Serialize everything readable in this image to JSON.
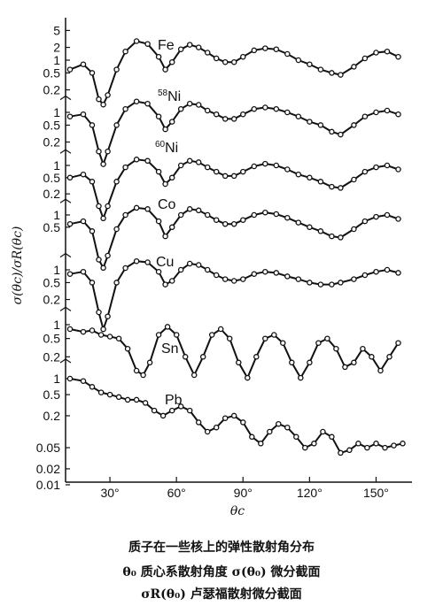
{
  "chart_data": {
    "type": "line",
    "xlabel": "θc",
    "ylabel": "σ(θc)/σR(θc)",
    "x_ticks": [
      "30°",
      "60°",
      "90°",
      "120°",
      "150°"
    ],
    "x_tick_values": [
      30,
      60,
      90,
      120,
      150
    ],
    "xlim": [
      10,
      165
    ],
    "series": [
      {
        "name": "Fe",
        "label_html": "Fe",
        "y_ticks": [
          "5",
          "2",
          "1",
          "0.5",
          "0.2"
        ],
        "x": [
          12,
          18,
          22,
          25,
          27,
          29,
          33,
          37,
          42,
          47,
          52,
          55,
          58,
          62,
          66,
          70,
          74,
          78,
          82,
          86,
          90,
          95,
          100,
          105,
          110,
          115,
          120,
          125,
          130,
          134,
          140,
          145,
          150,
          155,
          160
        ],
        "y": [
          0.6,
          0.8,
          0.5,
          0.12,
          0.09,
          0.15,
          0.6,
          1.6,
          2.8,
          2.4,
          1.2,
          0.6,
          0.9,
          1.8,
          2.3,
          2.0,
          1.5,
          1.1,
          0.9,
          0.9,
          1.2,
          1.7,
          1.9,
          1.8,
          1.4,
          1.0,
          0.8,
          0.6,
          0.5,
          0.45,
          0.7,
          1.1,
          1.5,
          1.6,
          1.2
        ]
      },
      {
        "name": "58Ni",
        "sup": "58",
        "base": "Ni",
        "y_ticks": [
          "1",
          "0.5",
          "0.2"
        ],
        "x": [
          12,
          18,
          22,
          25,
          27,
          29,
          33,
          37,
          42,
          47,
          52,
          55,
          58,
          62,
          66,
          70,
          74,
          78,
          82,
          86,
          90,
          95,
          100,
          105,
          110,
          115,
          120,
          125,
          130,
          134,
          140,
          145,
          150,
          155,
          160
        ],
        "y": [
          0.8,
          0.9,
          0.5,
          0.12,
          0.06,
          0.12,
          0.5,
          1.2,
          1.8,
          1.6,
          0.8,
          0.4,
          0.6,
          1.2,
          1.6,
          1.5,
          1.1,
          0.9,
          0.7,
          0.7,
          0.9,
          1.2,
          1.3,
          1.2,
          1.0,
          0.8,
          0.6,
          0.5,
          0.35,
          0.3,
          0.5,
          0.8,
          1.0,
          1.1,
          0.9
        ]
      },
      {
        "name": "60Ni",
        "sup": "60",
        "base": "Ni",
        "y_ticks": [
          "1",
          "0.5",
          "0.2"
        ],
        "x": [
          12,
          18,
          22,
          25,
          27,
          29,
          33,
          37,
          42,
          47,
          52,
          55,
          58,
          62,
          66,
          70,
          74,
          78,
          82,
          86,
          90,
          95,
          100,
          105,
          110,
          115,
          120,
          125,
          130,
          134,
          140,
          145,
          150,
          155,
          160
        ],
        "y": [
          0.5,
          0.6,
          0.4,
          0.1,
          0.05,
          0.1,
          0.4,
          0.9,
          1.4,
          1.3,
          0.7,
          0.35,
          0.5,
          1.0,
          1.3,
          1.2,
          0.9,
          0.7,
          0.55,
          0.55,
          0.7,
          0.95,
          1.1,
          1.0,
          0.8,
          0.6,
          0.5,
          0.4,
          0.3,
          0.28,
          0.45,
          0.7,
          0.9,
          1.0,
          0.8
        ]
      },
      {
        "name": "Co",
        "label_html": "Co",
        "y_ticks": [
          "1",
          "0.5"
        ],
        "x": [
          12,
          18,
          22,
          25,
          27,
          29,
          33,
          37,
          42,
          47,
          52,
          55,
          58,
          62,
          66,
          70,
          74,
          78,
          82,
          86,
          90,
          95,
          100,
          105,
          110,
          115,
          120,
          125,
          130,
          134,
          140,
          145,
          150,
          155,
          160
        ],
        "y": [
          0.6,
          0.7,
          0.4,
          0.08,
          0.05,
          0.1,
          0.45,
          1.0,
          1.5,
          1.4,
          0.7,
          0.3,
          0.5,
          1.0,
          1.4,
          1.3,
          1.0,
          0.75,
          0.6,
          0.6,
          0.75,
          1.0,
          1.15,
          1.05,
          0.85,
          0.65,
          0.5,
          0.4,
          0.3,
          0.28,
          0.45,
          0.7,
          0.9,
          1.0,
          0.8
        ]
      },
      {
        "name": "Cu",
        "label_html": "Cu",
        "y_ticks": [
          "1",
          "0.5",
          "0.2"
        ],
        "x": [
          12,
          18,
          22,
          25,
          27,
          29,
          33,
          37,
          42,
          47,
          52,
          55,
          58,
          62,
          66,
          70,
          74,
          78,
          82,
          86,
          90,
          95,
          100,
          105,
          110,
          115,
          120,
          125,
          130,
          134,
          140,
          145,
          150,
          155,
          160
        ],
        "y": [
          0.8,
          0.9,
          0.5,
          0.1,
          0.04,
          0.08,
          0.5,
          1.1,
          1.6,
          1.5,
          0.9,
          0.45,
          0.55,
          1.0,
          1.4,
          1.3,
          1.0,
          0.75,
          0.6,
          0.55,
          0.6,
          0.8,
          0.9,
          0.85,
          0.7,
          0.6,
          0.5,
          0.45,
          0.45,
          0.5,
          0.6,
          0.75,
          0.9,
          1.0,
          0.85
        ]
      },
      {
        "name": "Sn",
        "label_html": "Sn",
        "y_ticks": [
          "1",
          "0.5",
          "0.2"
        ],
        "x": [
          12,
          18,
          22,
          26,
          30,
          34,
          38,
          42,
          45,
          48,
          52,
          56,
          60,
          64,
          68,
          72,
          76,
          80,
          84,
          88,
          92,
          96,
          100,
          104,
          108,
          112,
          116,
          120,
          124,
          128,
          132,
          136,
          140,
          144,
          148,
          152,
          156,
          160
        ],
        "y": [
          0.8,
          0.7,
          0.75,
          0.6,
          0.55,
          0.5,
          0.3,
          0.1,
          0.08,
          0.15,
          0.6,
          0.9,
          0.6,
          0.2,
          0.08,
          0.2,
          0.6,
          0.8,
          0.5,
          0.15,
          0.07,
          0.2,
          0.5,
          0.6,
          0.4,
          0.15,
          0.07,
          0.15,
          0.4,
          0.5,
          0.3,
          0.12,
          0.15,
          0.3,
          0.2,
          0.1,
          0.2,
          0.4
        ]
      },
      {
        "name": "Pb",
        "label_html": "Pb",
        "y_ticks": [
          "1",
          "0.5",
          "0.2",
          "0.05",
          "0.02",
          "0.01"
        ],
        "x": [
          12,
          18,
          22,
          26,
          30,
          34,
          38,
          42,
          46,
          50,
          54,
          58,
          62,
          66,
          70,
          74,
          78,
          82,
          86,
          90,
          94,
          98,
          102,
          106,
          110,
          114,
          118,
          122,
          126,
          130,
          134,
          138,
          142,
          146,
          150,
          154,
          158,
          162
        ],
        "y": [
          1.0,
          0.9,
          0.7,
          0.55,
          0.5,
          0.45,
          0.4,
          0.4,
          0.35,
          0.25,
          0.2,
          0.25,
          0.3,
          0.25,
          0.15,
          0.1,
          0.12,
          0.18,
          0.2,
          0.15,
          0.08,
          0.06,
          0.1,
          0.14,
          0.12,
          0.08,
          0.05,
          0.06,
          0.1,
          0.08,
          0.04,
          0.045,
          0.06,
          0.05,
          0.06,
          0.05,
          0.055,
          0.06
        ]
      }
    ]
  },
  "caption": {
    "line1": "质子在一些核上的弹性散射角分布",
    "line2": "θ₀ 质心系散射角度   σ(θ₀) 微分截面",
    "line3": "σR(θ₀) 卢瑟福散射微分截面"
  }
}
